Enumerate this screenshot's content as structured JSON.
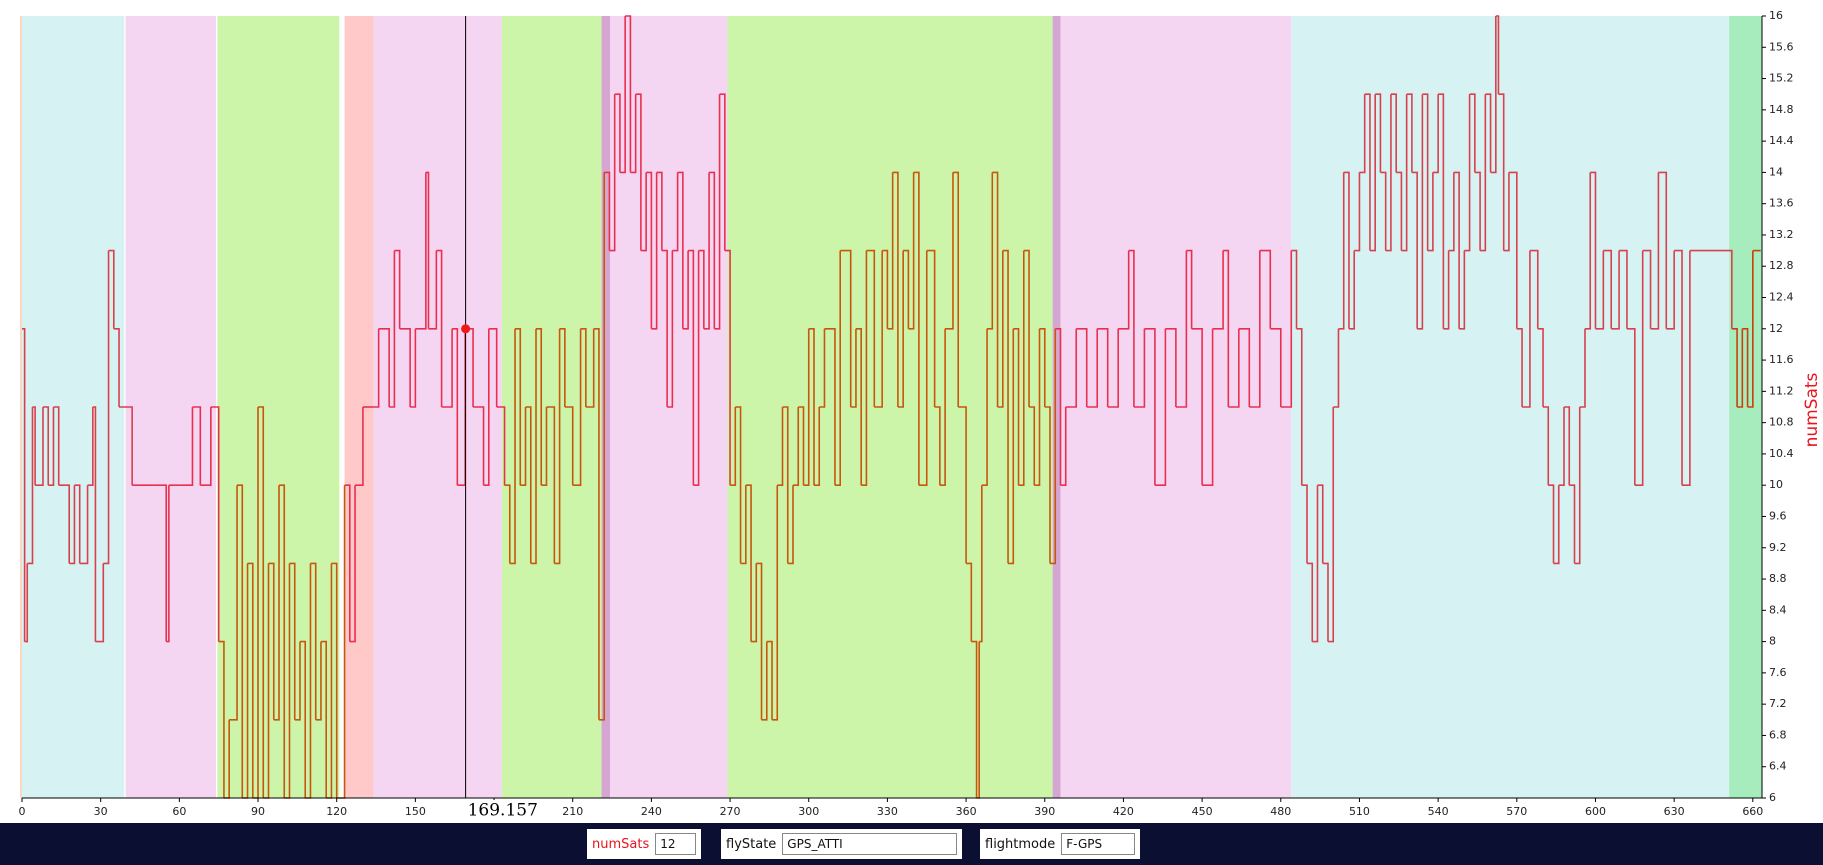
{
  "chart_data": {
    "type": "step_line",
    "y_label": "numSats",
    "xlim": [
      0,
      663.5
    ],
    "ylim": [
      6,
      16
    ],
    "xticks": [
      0,
      30,
      60,
      90,
      120,
      150,
      180,
      210,
      240,
      270,
      300,
      330,
      360,
      390,
      420,
      450,
      480,
      510,
      540,
      570,
      600,
      630,
      660
    ],
    "yticks": [
      6,
      6.4,
      6.8,
      7.2,
      7.6,
      8,
      8.4,
      8.8,
      9.2,
      9.6,
      10,
      10.4,
      10.8,
      11.2,
      11.6,
      12,
      12.4,
      12.8,
      13.2,
      13.6,
      14,
      14.4,
      14.8,
      15.2,
      15.6,
      16
    ],
    "regions": [
      {
        "start": 0,
        "end": 39,
        "color": "#d6f2f2",
        "line_color": "#d9404e"
      },
      {
        "start": 39.5,
        "end": 74,
        "color": "#f5d6f2",
        "line_color": "#e8304e"
      },
      {
        "start": 74.5,
        "end": 121,
        "color": "#ccf5aa",
        "line_color": "#c8560c"
      },
      {
        "start": 123,
        "end": 134,
        "color": "#ffc9c9",
        "line_color": "#e8304e"
      },
      {
        "start": 134,
        "end": 183,
        "color": "#f5d6f2",
        "line_color": "#e8304e"
      },
      {
        "start": 183,
        "end": 221,
        "color": "#ccf5aa",
        "line_color": "#c8560c"
      },
      {
        "start": 221,
        "end": 224.3,
        "color": "#d6a6d2",
        "line_color": "#e8304e"
      },
      {
        "start": 224.3,
        "end": 269,
        "color": "#f5d6f2",
        "line_color": "#e8304e"
      },
      {
        "start": 269,
        "end": 393,
        "color": "#ccf5aa",
        "line_color": "#c8560c"
      },
      {
        "start": 393,
        "end": 396,
        "color": "#d6a6d2",
        "line_color": "#e8304e"
      },
      {
        "start": 396,
        "end": 484,
        "color": "#f5d6f2",
        "line_color": "#e8304e"
      },
      {
        "start": 484,
        "end": 651,
        "color": "#d6f2f2",
        "line_color": "#d9404e"
      },
      {
        "start": 651,
        "end": 663.5,
        "color": "#a6ecbc",
        "line_color": "#c8400c"
      }
    ],
    "series": [
      {
        "name": "numSats",
        "color": "#e8304e",
        "x": [
          0,
          1,
          2,
          4,
          5,
          8,
          10,
          12,
          14,
          18,
          20,
          22,
          25,
          27,
          28,
          31,
          33,
          35,
          37,
          42,
          50,
          55,
          56,
          60,
          65,
          68,
          72,
          75,
          77,
          79,
          82,
          84,
          86,
          88,
          90,
          92,
          94,
          96,
          98,
          100,
          102,
          104,
          106,
          108,
          110,
          112,
          114,
          116,
          118,
          120,
          123,
          125,
          127,
          130,
          134,
          136,
          140,
          142,
          144,
          148,
          150,
          154,
          155,
          158,
          160,
          164,
          166,
          169,
          172,
          176,
          178,
          181,
          184,
          186,
          188,
          190,
          192,
          194,
          196,
          198,
          200,
          203,
          205,
          207,
          210,
          213,
          215,
          218,
          220,
          222,
          224,
          226,
          228,
          230,
          232,
          234,
          236,
          238,
          240,
          242,
          244,
          246,
          248,
          250,
          252,
          254,
          256,
          258,
          260,
          262,
          264,
          266,
          268,
          270,
          272,
          274,
          276,
          278,
          280,
          282,
          284,
          286,
          288,
          290,
          292,
          294,
          296,
          298,
          300,
          302,
          304,
          306,
          310,
          312,
          316,
          318,
          320,
          322,
          325,
          328,
          330,
          332,
          334,
          336,
          338,
          340,
          342,
          345,
          348,
          350,
          352,
          355,
          357,
          360,
          362,
          364,
          365,
          366,
          368,
          370,
          372,
          374,
          376,
          378,
          380,
          382,
          384,
          386,
          388,
          390,
          392,
          394,
          396,
          398,
          402,
          406,
          410,
          414,
          418,
          422,
          424,
          428,
          432,
          436,
          440,
          444,
          446,
          450,
          454,
          458,
          460,
          464,
          468,
          472,
          476,
          480,
          484,
          486,
          488,
          490,
          492,
          494,
          496,
          498,
          500,
          502,
          504,
          506,
          508,
          510,
          512,
          514,
          516,
          518,
          520,
          522,
          524,
          526,
          528,
          530,
          532,
          534,
          536,
          538,
          540,
          542,
          544,
          546,
          548,
          550,
          552,
          554,
          556,
          558,
          560,
          562,
          563,
          565,
          567,
          570,
          572,
          575,
          578,
          580,
          582,
          584,
          586,
          588,
          590,
          592,
          594,
          596,
          598,
          600,
          603,
          606,
          609,
          612,
          615,
          618,
          621,
          624,
          627,
          630,
          633,
          636,
          652,
          654,
          656,
          658,
          660,
          663
        ],
        "values": [
          12,
          8,
          9,
          11,
          10,
          11,
          10,
          11,
          10,
          9,
          10,
          9,
          10,
          11,
          8,
          9,
          13,
          12,
          11,
          10,
          10,
          8,
          10,
          10,
          11,
          10,
          11,
          8,
          6,
          7,
          10,
          6,
          9,
          6,
          11,
          6,
          9,
          7,
          10,
          6,
          9,
          7,
          8,
          6,
          9,
          7,
          8,
          6,
          9,
          6,
          10,
          8,
          10,
          11,
          11,
          12,
          11,
          13,
          12,
          11,
          12,
          14,
          12,
          13,
          11,
          12,
          10,
          12,
          11,
          10,
          12,
          11,
          10,
          9,
          12,
          10,
          11,
          9,
          12,
          10,
          11,
          9,
          12,
          11,
          10,
          12,
          11,
          12,
          7,
          14,
          13,
          15,
          14,
          16,
          14,
          15,
          13,
          14,
          12,
          14,
          13,
          11,
          13,
          14,
          12,
          13,
          10,
          13,
          12,
          14,
          12,
          15,
          13,
          10,
          11,
          9,
          10,
          8,
          9,
          7,
          8,
          7,
          10,
          11,
          9,
          10,
          11,
          10,
          12,
          10,
          11,
          12,
          10,
          13,
          11,
          12,
          10,
          13,
          11,
          13,
          12,
          14,
          11,
          13,
          12,
          14,
          10,
          13,
          11,
          10,
          12,
          14,
          11,
          9,
          8,
          6,
          8,
          10,
          12,
          14,
          11,
          13,
          9,
          12,
          10,
          13,
          11,
          10,
          12,
          11,
          9,
          12,
          10,
          11,
          12,
          11,
          12,
          11,
          12,
          13,
          11,
          12,
          10,
          12,
          11,
          13,
          12,
          10,
          12,
          13,
          11,
          12,
          11,
          13,
          12,
          11,
          13,
          12,
          10,
          9,
          8,
          10,
          9,
          8,
          11,
          12,
          14,
          12,
          13,
          14,
          15,
          13,
          15,
          14,
          13,
          15,
          14,
          13,
          15,
          14,
          12,
          15,
          13,
          14,
          15,
          12,
          13,
          14,
          12,
          13,
          15,
          14,
          13,
          15,
          14,
          16,
          15,
          13,
          14,
          12,
          11,
          13,
          12,
          11,
          10,
          9,
          10,
          11,
          10,
          9,
          11,
          12,
          14,
          12,
          13,
          12,
          13,
          12,
          10,
          13,
          12,
          14,
          12,
          13,
          10,
          13,
          12,
          11,
          12,
          11,
          13,
          13
        ]
      }
    ],
    "cursor": {
      "x": 169.157,
      "label": "169.157",
      "value": 12
    }
  },
  "status_bar": {
    "fields": [
      {
        "label": "numSats",
        "value": "12"
      },
      {
        "label": "flyState",
        "value": "GPS_ATTI"
      },
      {
        "label": "flightmode",
        "value": "F-GPS"
      }
    ]
  }
}
